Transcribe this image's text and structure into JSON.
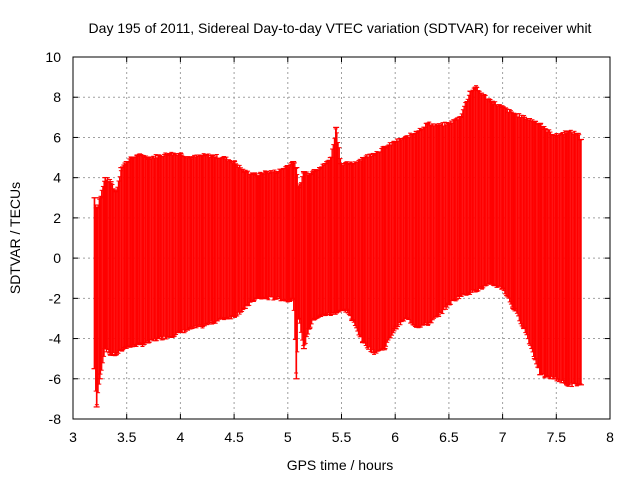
{
  "chart_data": {
    "type": "area",
    "title": "Day 195 of 2011, Sidereal Day-to-day VTEC variation (SDTVAR) for receiver whit",
    "xlabel": "GPS time / hours",
    "ylabel": "SDTVAR / TECUs",
    "xlim": [
      3,
      8
    ],
    "ylim": [
      -8,
      10
    ],
    "xticks": [
      3,
      3.5,
      4,
      4.5,
      5,
      5.5,
      6,
      6.5,
      7,
      7.5,
      8
    ],
    "xtick_labels": [
      "3",
      "3.5",
      "4",
      "4.5",
      "5",
      "5.5",
      "6",
      "6.5",
      "7",
      "7.5",
      "8"
    ],
    "yticks": [
      -8,
      -6,
      -4,
      -2,
      0,
      2,
      4,
      6,
      8,
      10
    ],
    "ytick_labels": [
      "-8",
      "-6",
      "-4",
      "-2",
      "0",
      "2",
      "4",
      "6",
      "8",
      "10"
    ],
    "grid": true,
    "color": "#ff0000",
    "series": [
      {
        "style": "error-bars",
        "x": [
          3.2,
          3.22,
          3.25,
          3.3,
          3.35,
          3.4,
          3.45,
          3.5,
          3.55,
          3.6,
          3.65,
          3.7,
          3.8,
          3.9,
          4.0,
          4.1,
          4.2,
          4.3,
          4.4,
          4.5,
          4.6,
          4.68,
          4.72,
          4.75,
          4.8,
          4.9,
          5.0,
          5.05,
          5.08,
          5.1,
          5.15,
          5.2,
          5.25,
          5.3,
          5.35,
          5.4,
          5.45,
          5.5,
          5.55,
          5.6,
          5.7,
          5.8,
          5.9,
          6.0,
          6.1,
          6.2,
          6.3,
          6.4,
          6.5,
          6.6,
          6.7,
          6.75,
          6.8,
          6.9,
          7.0,
          7.1,
          7.2,
          7.3,
          7.35,
          7.4,
          7.5,
          7.6,
          7.7,
          7.73
        ],
        "upper": [
          3.0,
          2.5,
          3.0,
          4.0,
          3.8,
          3.3,
          4.5,
          4.8,
          5.0,
          5.1,
          5.1,
          5.0,
          5.1,
          5.2,
          5.2,
          5.0,
          5.1,
          5.1,
          5.0,
          4.8,
          4.3,
          4.2,
          4.1,
          4.2,
          4.3,
          4.3,
          4.6,
          4.8,
          4.5,
          3.5,
          4.3,
          4.2,
          4.4,
          4.5,
          4.7,
          5.0,
          6.5,
          4.7,
          4.7,
          4.7,
          5.0,
          5.2,
          5.5,
          5.8,
          6.0,
          6.3,
          6.7,
          6.6,
          6.7,
          7.0,
          8.3,
          8.5,
          8.2,
          7.8,
          7.5,
          7.2,
          7.0,
          6.8,
          6.7,
          6.4,
          6.1,
          6.3,
          6.2,
          5.9
        ],
        "lower": [
          -5.5,
          -7.4,
          -6.0,
          -4.5,
          -4.8,
          -4.8,
          -4.6,
          -4.4,
          -4.4,
          -4.3,
          -4.3,
          -4.2,
          -4.0,
          -3.9,
          -3.7,
          -3.5,
          -3.4,
          -3.2,
          -3.0,
          -2.9,
          -2.5,
          -2.1,
          -2.0,
          -2.0,
          -2.0,
          -2.0,
          -2.1,
          -2.0,
          -6.0,
          -3.0,
          -4.5,
          -3.5,
          -3.0,
          -2.9,
          -2.8,
          -2.8,
          -2.7,
          -2.6,
          -2.6,
          -3.1,
          -4.2,
          -4.7,
          -4.5,
          -3.5,
          -3.0,
          -3.4,
          -3.3,
          -2.9,
          -2.3,
          -1.9,
          -1.7,
          -1.6,
          -1.5,
          -1.3,
          -1.5,
          -2.5,
          -3.5,
          -5.0,
          -5.8,
          -5.9,
          -6.0,
          -6.3,
          -6.3,
          -6.3
        ]
      }
    ]
  }
}
